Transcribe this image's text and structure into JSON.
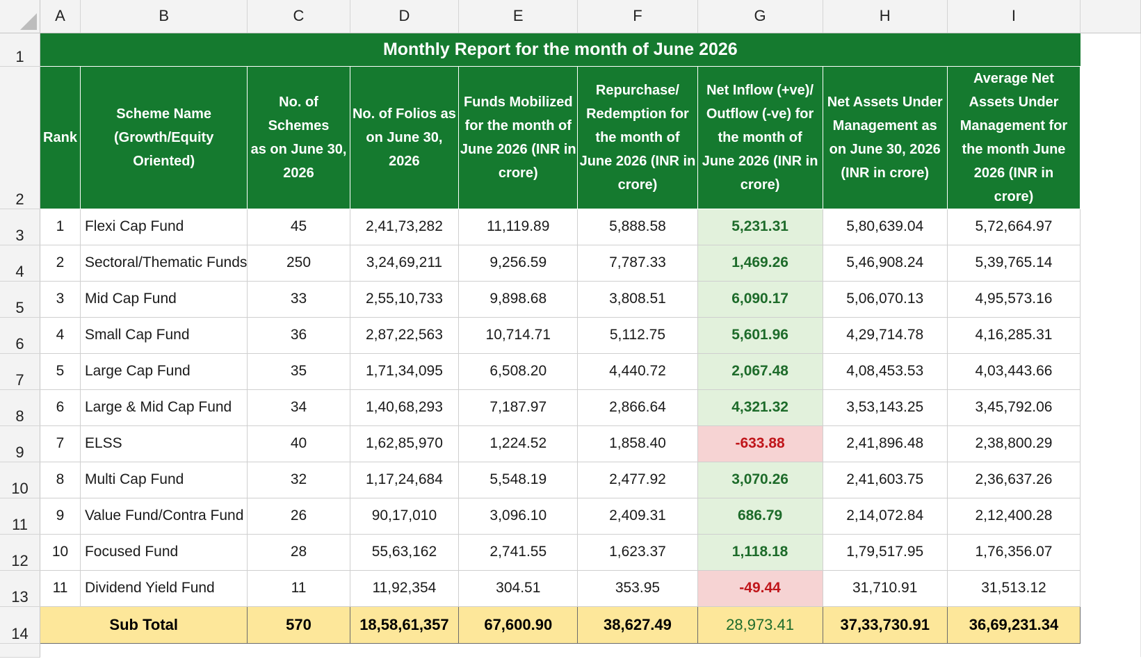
{
  "columns": [
    "A",
    "B",
    "C",
    "D",
    "E",
    "F",
    "G",
    "H",
    "I"
  ],
  "row_numbers": [
    "1",
    "2",
    "3",
    "4",
    "5",
    "6",
    "7",
    "8",
    "9",
    "10",
    "11",
    "12",
    "13",
    "14"
  ],
  "title": "Monthly Report for the month of June 2026",
  "headers": {
    "rank": "Rank",
    "scheme": [
      "Scheme Name",
      "(Growth/Equity",
      "Oriented)"
    ],
    "schemes": [
      "No. of Schemes",
      "as on June 30,",
      "2026"
    ],
    "folios": [
      "No. of Folios as",
      "on June 30,",
      "2026"
    ],
    "mobilized": [
      "Funds Mobilized",
      "for the month of",
      "June 2026 (INR in",
      "crore)"
    ],
    "redemption": [
      "Repurchase/",
      "Redemption for",
      "the month of",
      "June 2026 (INR in",
      "crore)"
    ],
    "net_flow": [
      "Net Inflow (+ve)/",
      "Outflow (-ve) for",
      "the month of",
      "June 2026 (INR in",
      "crore)"
    ],
    "net_assets": [
      "Net Assets Under",
      "Management as",
      "on June 30, 2026",
      "(INR in crore)"
    ],
    "avg_assets": [
      "Average Net",
      "Assets Under",
      "Management for",
      "the month June",
      "2026 (INR in",
      "crore)"
    ]
  },
  "rows": [
    {
      "rank": "1",
      "scheme": "Flexi Cap Fund",
      "schemes": "45",
      "folios": "2,41,73,282",
      "mobilized": "11,119.89",
      "redemption": "5,888.58",
      "net_flow": "5,231.31",
      "net_assets": "5,80,639.04",
      "avg_assets": "5,72,664.97"
    },
    {
      "rank": "2",
      "scheme": "Sectoral/Thematic Funds",
      "schemes": "250",
      "folios": "3,24,69,211",
      "mobilized": "9,256.59",
      "redemption": "7,787.33",
      "net_flow": "1,469.26",
      "net_assets": "5,46,908.24",
      "avg_assets": "5,39,765.14"
    },
    {
      "rank": "3",
      "scheme": "Mid Cap Fund",
      "schemes": "33",
      "folios": "2,55,10,733",
      "mobilized": "9,898.68",
      "redemption": "3,808.51",
      "net_flow": "6,090.17",
      "net_assets": "5,06,070.13",
      "avg_assets": "4,95,573.16"
    },
    {
      "rank": "4",
      "scheme": "Small Cap Fund",
      "schemes": "36",
      "folios": "2,87,22,563",
      "mobilized": "10,714.71",
      "redemption": "5,112.75",
      "net_flow": "5,601.96",
      "net_assets": "4,29,714.78",
      "avg_assets": "4,16,285.31"
    },
    {
      "rank": "5",
      "scheme": "Large Cap Fund",
      "schemes": "35",
      "folios": "1,71,34,095",
      "mobilized": "6,508.20",
      "redemption": "4,440.72",
      "net_flow": "2,067.48",
      "net_assets": "4,08,453.53",
      "avg_assets": "4,03,443.66"
    },
    {
      "rank": "6",
      "scheme": "Large & Mid Cap Fund",
      "schemes": "34",
      "folios": "1,40,68,293",
      "mobilized": "7,187.97",
      "redemption": "2,866.64",
      "net_flow": "4,321.32",
      "net_assets": "3,53,143.25",
      "avg_assets": "3,45,792.06"
    },
    {
      "rank": "7",
      "scheme": "ELSS",
      "schemes": "40",
      "folios": "1,62,85,970",
      "mobilized": "1,224.52",
      "redemption": "1,858.40",
      "net_flow": "-633.88",
      "net_assets": "2,41,896.48",
      "avg_assets": "2,38,800.29"
    },
    {
      "rank": "8",
      "scheme": "Multi Cap Fund",
      "schemes": "32",
      "folios": "1,17,24,684",
      "mobilized": "5,548.19",
      "redemption": "2,477.92",
      "net_flow": "3,070.26",
      "net_assets": "2,41,603.75",
      "avg_assets": "2,36,637.26"
    },
    {
      "rank": "9",
      "scheme": "Value Fund/Contra Fund",
      "schemes": "26",
      "folios": "90,17,010",
      "mobilized": "3,096.10",
      "redemption": "2,409.31",
      "net_flow": "686.79",
      "net_assets": "2,14,072.84",
      "avg_assets": "2,12,400.28"
    },
    {
      "rank": "10",
      "scheme": "Focused Fund",
      "schemes": "28",
      "folios": "55,63,162",
      "mobilized": "2,741.55",
      "redemption": "1,623.37",
      "net_flow": "1,118.18",
      "net_assets": "1,79,517.95",
      "avg_assets": "1,76,356.07"
    },
    {
      "rank": "11",
      "scheme": "Dividend Yield Fund",
      "schemes": "11",
      "folios": "11,92,354",
      "mobilized": "304.51",
      "redemption": "353.95",
      "net_flow": "-49.44",
      "net_assets": "31,710.91",
      "avg_assets": "31,513.12"
    }
  ],
  "subtotal": {
    "label": "Sub Total",
    "schemes": "570",
    "folios": "18,58,61,357",
    "mobilized": "67,600.90",
    "redemption": "38,627.49",
    "net_flow": "28,973.41",
    "net_assets": "37,33,730.91",
    "avg_assets": "36,69,231.34"
  },
  "colors": {
    "header_green": "#157a2f",
    "positive_fill": "#e2f1dc",
    "positive_text": "#1d6b2a",
    "negative_fill": "#f6d3d3",
    "negative_text": "#c0161b",
    "subtotal_fill": "#fde79a"
  }
}
